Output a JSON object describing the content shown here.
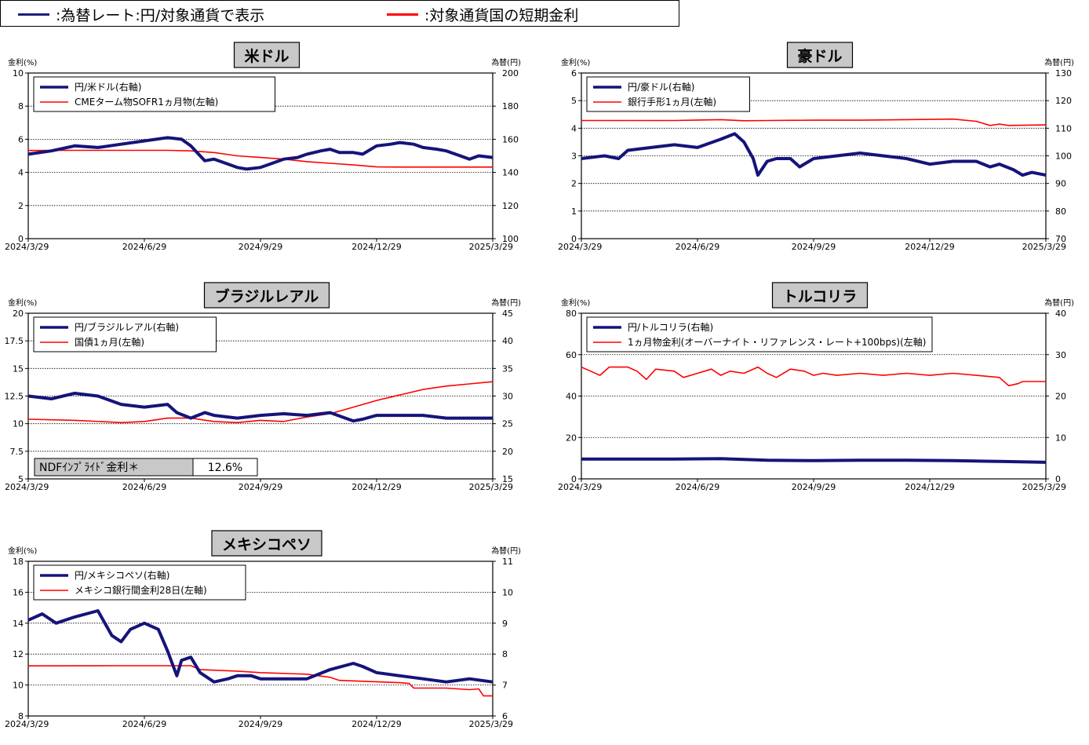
{
  "header_legend": {
    "items": [
      {
        "label": ":為替レート:円/対象通貨で表示",
        "color": "#1f1f7a"
      },
      {
        "label": ":対象通貨国の短期金利",
        "color": "#ff0000"
      }
    ]
  },
  "colors": {
    "fx": "#14147a",
    "rate": "#ff0000"
  },
  "chart_data": [
    {
      "id": "usd",
      "type": "line",
      "title": "米ドル",
      "ylabel_left": "金利(%)",
      "ylabel_right": "為替(円)",
      "ylim_left": [
        0,
        10
      ],
      "yticks_left": [
        "0",
        "2",
        "4",
        "6",
        "8",
        "10"
      ],
      "ylim_right": [
        100,
        200
      ],
      "yticks_right": [
        "100",
        "120",
        "140",
        "160",
        "180",
        "200"
      ],
      "x_labels": [
        "2024/3/29",
        "2024/6/29",
        "2024/9/29",
        "2024/12/29",
        "2025/3/29"
      ],
      "grid": true,
      "legend_position": "top-left",
      "series": [
        {
          "name": "円/米ドル(右軸)",
          "axis": "right",
          "x": [
            0,
            0.05,
            0.1,
            0.15,
            0.2,
            0.25,
            0.3,
            0.33,
            0.35,
            0.38,
            0.4,
            0.42,
            0.45,
            0.47,
            0.5,
            0.52,
            0.55,
            0.58,
            0.6,
            0.63,
            0.65,
            0.67,
            0.7,
            0.72,
            0.75,
            0.78,
            0.8,
            0.83,
            0.85,
            0.88,
            0.9,
            0.93,
            0.95,
            0.97,
            1
          ],
          "values": [
            151,
            153,
            156,
            155,
            157,
            159,
            161,
            160,
            156,
            147,
            148,
            146,
            143,
            142,
            143,
            145,
            148,
            149,
            151,
            153,
            154,
            152,
            152,
            151,
            156,
            157,
            158,
            157,
            155,
            154,
            153,
            150,
            148,
            150,
            149
          ]
        },
        {
          "name": "CMEターム物SOFR1ヵ月物(左軸)",
          "axis": "left",
          "x": [
            0,
            0.1,
            0.2,
            0.3,
            0.35,
            0.4,
            0.45,
            0.5,
            0.55,
            0.6,
            0.65,
            0.7,
            0.75,
            0.8,
            0.9,
            1
          ],
          "values": [
            5.32,
            5.33,
            5.33,
            5.33,
            5.3,
            5.2,
            5.0,
            4.9,
            4.8,
            4.65,
            4.55,
            4.45,
            4.33,
            4.32,
            4.32,
            4.32
          ]
        }
      ]
    },
    {
      "id": "aud",
      "type": "line",
      "title": "豪ドル",
      "ylabel_left": "金利(%)",
      "ylabel_right": "為替(円)",
      "ylim_left": [
        0,
        6
      ],
      "yticks_left": [
        "0",
        "1",
        "2",
        "3",
        "4",
        "5",
        "6"
      ],
      "ylim_right": [
        70,
        130
      ],
      "yticks_right": [
        "70",
        "80",
        "90",
        "100",
        "110",
        "120",
        "130"
      ],
      "x_labels": [
        "2024/3/29",
        "2024/6/29",
        "2024/9/29",
        "2024/12/29",
        "2025/3/29"
      ],
      "grid": true,
      "legend_position": "top-left",
      "series": [
        {
          "name": "円/豪ドル(右軸)",
          "axis": "right",
          "x": [
            0,
            0.05,
            0.08,
            0.1,
            0.15,
            0.2,
            0.25,
            0.3,
            0.33,
            0.35,
            0.37,
            0.38,
            0.4,
            0.42,
            0.45,
            0.47,
            0.5,
            0.55,
            0.6,
            0.65,
            0.7,
            0.75,
            0.8,
            0.85,
            0.88,
            0.9,
            0.93,
            0.95,
            0.97,
            1
          ],
          "values": [
            99,
            100,
            99,
            102,
            103,
            104,
            103,
            106,
            108,
            105,
            99,
            93,
            98,
            99,
            99,
            96,
            99,
            100,
            101,
            100,
            99,
            97,
            98,
            98,
            96,
            97,
            95,
            93,
            94,
            93
          ]
        },
        {
          "name": "銀行手形1ヵ月(左軸)",
          "axis": "left",
          "x": [
            0,
            0.2,
            0.3,
            0.35,
            0.4,
            0.5,
            0.6,
            0.7,
            0.8,
            0.85,
            0.88,
            0.9,
            0.92,
            1
          ],
          "values": [
            4.28,
            4.28,
            4.31,
            4.27,
            4.28,
            4.29,
            4.29,
            4.31,
            4.33,
            4.25,
            4.1,
            4.15,
            4.1,
            4.12
          ]
        }
      ]
    },
    {
      "id": "brl",
      "type": "line",
      "title": "ブラジルレアル",
      "ylabel_left": "金利(%)",
      "ylabel_right": "為替(円)",
      "ylim_left": [
        5,
        20
      ],
      "yticks_left": [
        "5",
        "7.5",
        "10",
        "12.5",
        "15",
        "17.5",
        "20"
      ],
      "ylim_right": [
        15,
        45
      ],
      "yticks_right": [
        "15",
        "20",
        "25",
        "30",
        "35",
        "40",
        "45"
      ],
      "x_labels": [
        "2024/3/29",
        "2024/6/29",
        "2024/9/29",
        "2024/12/29",
        "2025/3/29"
      ],
      "grid": true,
      "legend_position": "top-left",
      "annotation": {
        "label": "NDFｲﾝﾌﾟﾗｲﾄﾞ金利＊",
        "value": "12.6%"
      },
      "series": [
        {
          "name": "円/ブラジルレアル(右軸)",
          "axis": "right",
          "x": [
            0,
            0.05,
            0.1,
            0.15,
            0.2,
            0.25,
            0.3,
            0.32,
            0.35,
            0.38,
            0.4,
            0.45,
            0.5,
            0.55,
            0.6,
            0.65,
            0.7,
            0.72,
            0.75,
            0.8,
            0.85,
            0.9,
            0.95,
            1
          ],
          "values": [
            30,
            29.5,
            30.5,
            30,
            28.5,
            28,
            28.5,
            27,
            26,
            27,
            26.5,
            26,
            26.5,
            26.8,
            26.5,
            27,
            25.5,
            25.8,
            26.5,
            26.5,
            26.5,
            26,
            26,
            26
          ]
        },
        {
          "name": "国債1ヵ月(左軸)",
          "axis": "left",
          "x": [
            0,
            0.1,
            0.2,
            0.25,
            0.3,
            0.35,
            0.4,
            0.45,
            0.5,
            0.55,
            0.6,
            0.65,
            0.7,
            0.75,
            0.8,
            0.85,
            0.9,
            0.95,
            1
          ],
          "values": [
            10.4,
            10.3,
            10.1,
            10.2,
            10.5,
            10.5,
            10.2,
            10.1,
            10.3,
            10.2,
            10.6,
            10.9,
            11.5,
            12.1,
            12.6,
            13.1,
            13.4,
            13.6,
            13.8
          ]
        }
      ]
    },
    {
      "id": "try",
      "type": "line",
      "title": "トルコリラ",
      "ylabel_left": "金利(%)",
      "ylabel_right": "為替(円)",
      "ylim_left": [
        0,
        80
      ],
      "yticks_left": [
        "0",
        "20",
        "40",
        "60",
        "80"
      ],
      "ylim_right": [
        0,
        40
      ],
      "yticks_right": [
        "0",
        "10",
        "20",
        "30",
        "40"
      ],
      "x_labels": [
        "2024/3/29",
        "2024/6/29",
        "2024/9/29",
        "2024/12/29",
        "2025/3/29"
      ],
      "grid": true,
      "legend_position": "top-left",
      "series": [
        {
          "name": "円/トルコリラ(右軸)",
          "axis": "right",
          "x": [
            0,
            0.1,
            0.2,
            0.3,
            0.35,
            0.4,
            0.5,
            0.6,
            0.7,
            0.8,
            0.9,
            1
          ],
          "values": [
            4.8,
            4.8,
            4.8,
            4.9,
            4.7,
            4.5,
            4.4,
            4.5,
            4.5,
            4.4,
            4.2,
            4.0
          ]
        },
        {
          "name": "1ヵ月物金利(オーバーナイト・リファレンス・レート+100bps)(左軸)",
          "axis": "left",
          "x": [
            0,
            0.02,
            0.04,
            0.06,
            0.1,
            0.12,
            0.14,
            0.16,
            0.2,
            0.22,
            0.25,
            0.28,
            0.3,
            0.32,
            0.35,
            0.38,
            0.4,
            0.42,
            0.45,
            0.48,
            0.5,
            0.52,
            0.55,
            0.6,
            0.65,
            0.7,
            0.75,
            0.8,
            0.85,
            0.9,
            0.92,
            0.94,
            0.95,
            1
          ],
          "values": [
            54,
            52,
            50,
            54,
            54,
            52,
            48,
            53,
            52,
            49,
            51,
            53,
            50,
            52,
            51,
            54,
            51,
            49,
            53,
            52,
            50,
            51,
            50,
            51,
            50,
            51,
            50,
            51,
            50,
            49,
            45,
            46,
            47,
            47
          ]
        }
      ]
    },
    {
      "id": "mxn",
      "type": "line",
      "title": "メキシコペソ",
      "ylabel_left": "金利(%)",
      "ylabel_right": "為替(円)",
      "ylim_left": [
        8,
        18
      ],
      "yticks_left": [
        "8",
        "10",
        "12",
        "14",
        "16",
        "18"
      ],
      "ylim_right": [
        6,
        11
      ],
      "yticks_right": [
        "6",
        "7",
        "8",
        "9",
        "10",
        "11"
      ],
      "x_labels": [
        "2024/3/29",
        "2024/6/29",
        "2024/9/29",
        "2024/12/29",
        "2025/3/29"
      ],
      "grid": true,
      "legend_position": "top-left",
      "series": [
        {
          "name": "円/メキシコペソ(右軸)",
          "axis": "right",
          "x": [
            0,
            0.03,
            0.06,
            0.1,
            0.15,
            0.18,
            0.2,
            0.22,
            0.25,
            0.28,
            0.3,
            0.32,
            0.33,
            0.35,
            0.37,
            0.4,
            0.43,
            0.45,
            0.48,
            0.5,
            0.55,
            0.6,
            0.65,
            0.7,
            0.72,
            0.75,
            0.8,
            0.85,
            0.9,
            0.95,
            1
          ],
          "values": [
            9.1,
            9.3,
            9.0,
            9.2,
            9.4,
            8.6,
            8.4,
            8.8,
            9.0,
            8.8,
            8.1,
            7.3,
            7.8,
            7.9,
            7.4,
            7.1,
            7.2,
            7.3,
            7.3,
            7.2,
            7.2,
            7.2,
            7.5,
            7.7,
            7.6,
            7.4,
            7.3,
            7.2,
            7.1,
            7.2,
            7.1
          ]
        },
        {
          "name": "メキシコ銀行間金利28日(左軸)",
          "axis": "left",
          "x": [
            0,
            0.2,
            0.35,
            0.37,
            0.45,
            0.5,
            0.6,
            0.65,
            0.67,
            0.8,
            0.82,
            0.83,
            0.9,
            0.95,
            0.97,
            0.98,
            1
          ],
          "values": [
            11.24,
            11.25,
            11.25,
            11.0,
            10.9,
            10.8,
            10.7,
            10.5,
            10.3,
            10.15,
            10.1,
            9.8,
            9.8,
            9.7,
            9.75,
            9.3,
            9.3
          ]
        }
      ]
    }
  ]
}
